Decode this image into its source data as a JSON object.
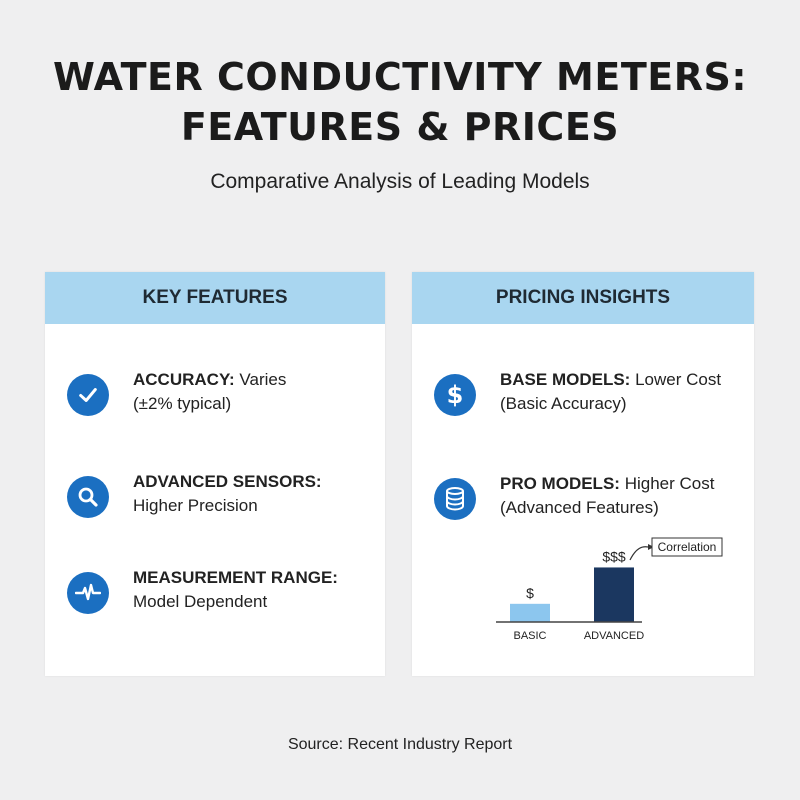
{
  "header": {
    "title_line1": "WATER CONDUCTIVITY METERS:",
    "title_line2": "FEATURES & PRICES",
    "subtitle": "Comparative Analysis of Leading Models"
  },
  "features": {
    "heading": "KEY FEATURES",
    "items": [
      {
        "label": "ACCURACY:",
        "text_line1": "Varies",
        "text_line2": "(±2% typical)",
        "icon": "checkmark-icon"
      },
      {
        "label": "ADVANCED SENSORS:",
        "text_line1": "",
        "text_line2": "Higher Precision",
        "icon": "magnifier-icon"
      },
      {
        "label": "MEASUREMENT RANGE:",
        "text_line1": "",
        "text_line2": "Model Dependent",
        "icon": "pulse-wave-icon"
      }
    ]
  },
  "pricing": {
    "heading": "PRICING INSIGHTS",
    "items": [
      {
        "label": "BASE MODELS:",
        "text_line1": "Lower Cost",
        "text_line2": "(Basic Accuracy)",
        "icon": "dollar-icon"
      },
      {
        "label": "PRO MODELS:",
        "text_line1": "Higher Cost",
        "text_line2": "(Advanced Features)",
        "icon": "coin-stack-icon"
      }
    ]
  },
  "chart_data": {
    "type": "bar",
    "categories": [
      "BASIC",
      "ADVANCED"
    ],
    "values": [
      1,
      3
    ],
    "data_labels": [
      "$",
      "$$$"
    ],
    "annotation": "Correlation",
    "colors": [
      "#8cc6ee",
      "#1b3760"
    ],
    "ylim": [
      0,
      3.3
    ]
  },
  "footer": {
    "source": "Source: Recent Industry Report"
  },
  "colors": {
    "background": "#efeff0",
    "header_band": "#a9d6f0",
    "icon_blue": "#1b6fc1"
  }
}
